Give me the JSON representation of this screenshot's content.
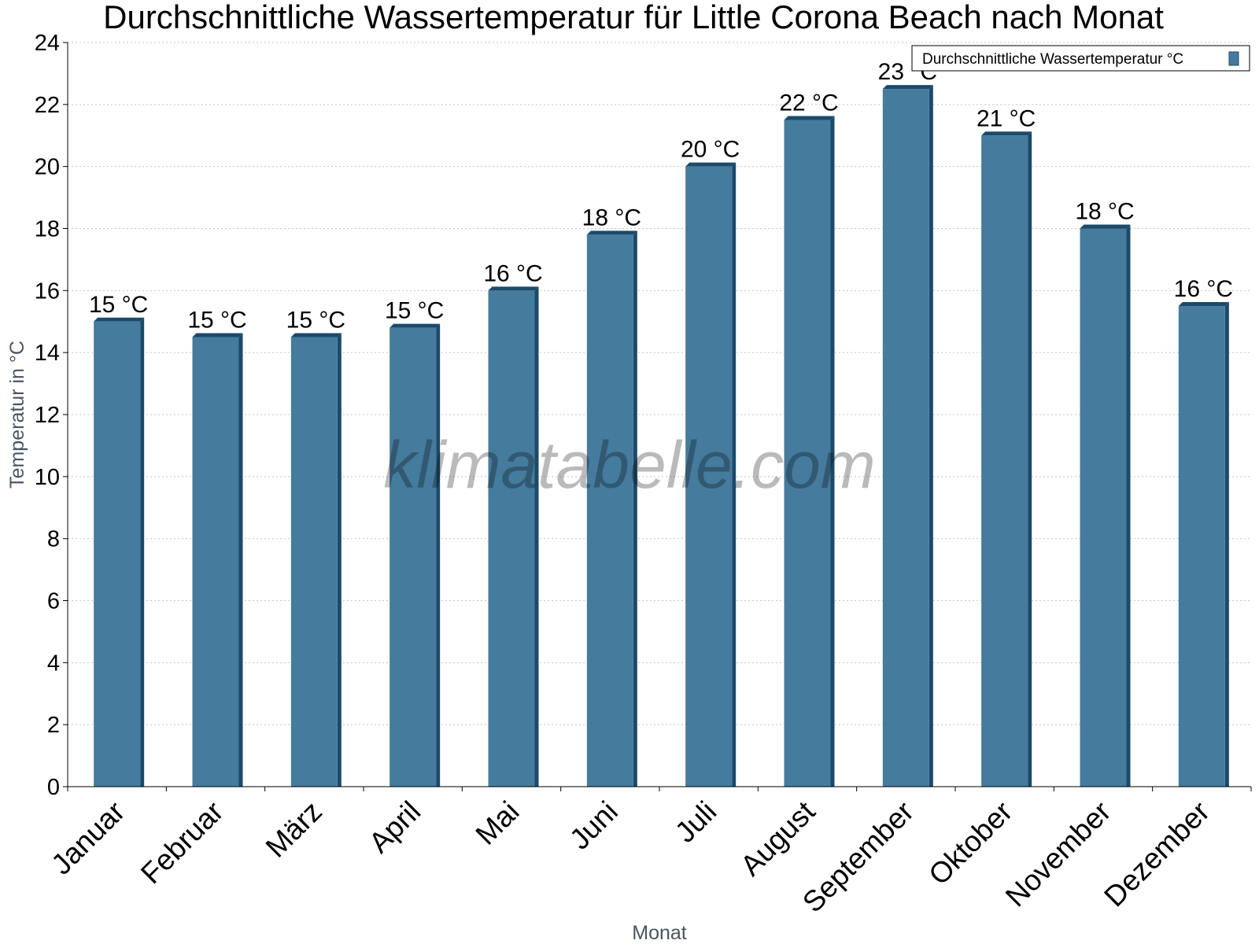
{
  "chart_data": {
    "type": "bar",
    "title": "Durchschnittliche Wassertemperatur für Little Corona Beach nach Monat",
    "xlabel": "Monat",
    "ylabel": "Temperatur in °C",
    "ylim": [
      0,
      24
    ],
    "ytick_step": 2,
    "grid": true,
    "legend_position": "top-right",
    "watermark": "klimatabelle.com",
    "categories": [
      "Januar",
      "Februar",
      "März",
      "April",
      "Mai",
      "Juni",
      "Juli",
      "August",
      "September",
      "Oktober",
      "November",
      "Dezember"
    ],
    "series": [
      {
        "name": "Durchschnittliche Wassertemperatur °C",
        "color": "#457b9d",
        "values": [
          15.0,
          14.5,
          14.5,
          14.8,
          16.0,
          17.8,
          20.0,
          21.5,
          22.5,
          21.0,
          18.0,
          15.5
        ],
        "labels": [
          "15 °C",
          "15 °C",
          "15 °C",
          "15 °C",
          "16 °C",
          "18 °C",
          "20 °C",
          "22 °C",
          "23 °C",
          "21 °C",
          "18 °C",
          "16 °C"
        ]
      }
    ]
  }
}
